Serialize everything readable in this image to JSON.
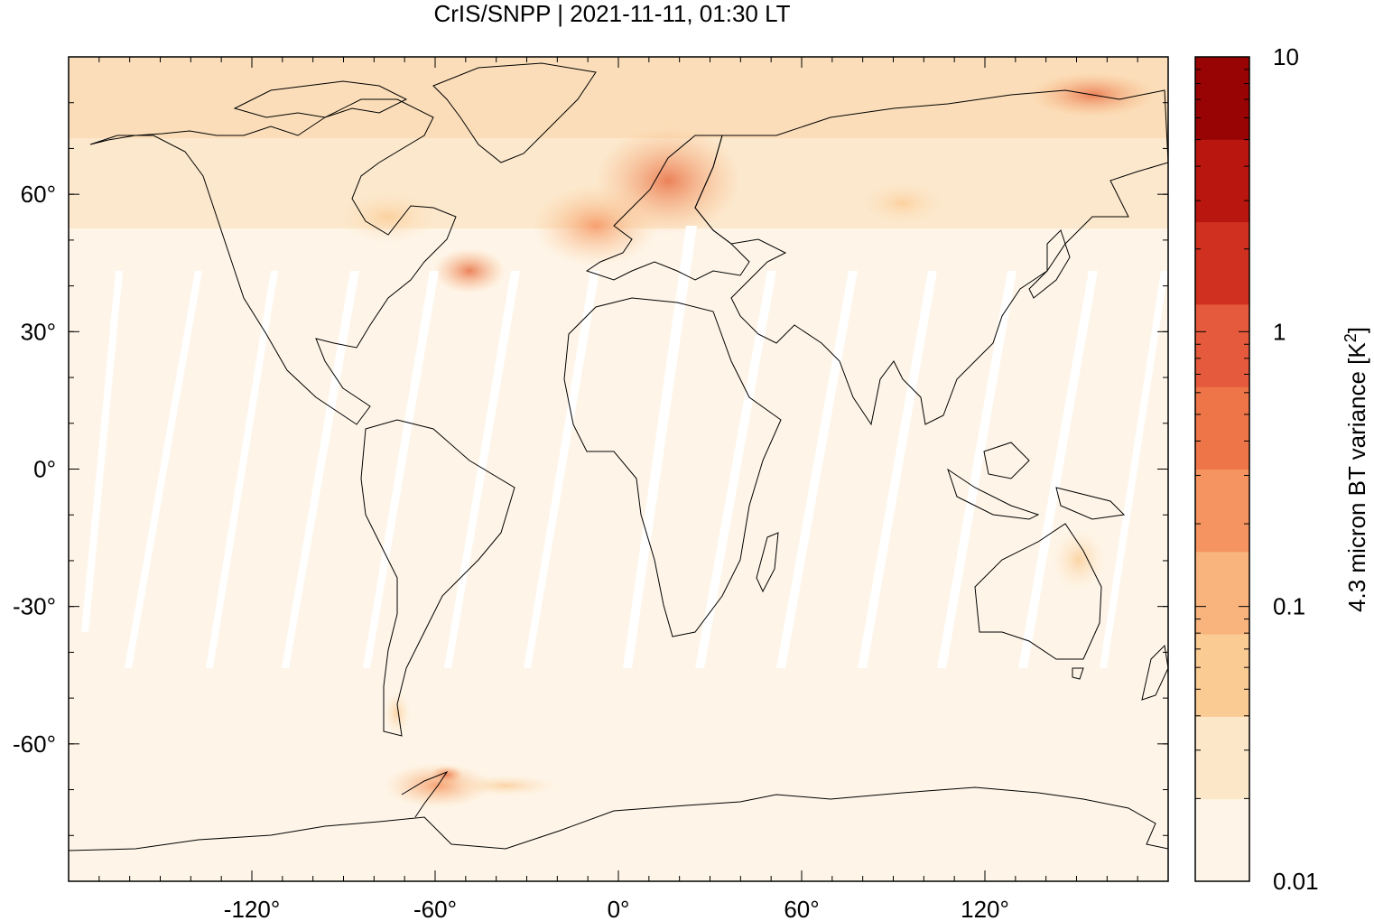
{
  "title": "CrIS/SNPP | 2021-11-11, 01:30 LT",
  "map": {
    "projection": "equirectangular",
    "lon_range": [
      -180,
      180
    ],
    "lat_range": [
      -90,
      90
    ],
    "x_ticks": [
      {
        "value": -120,
        "label": "-120°"
      },
      {
        "value": -60,
        "label": "-60°"
      },
      {
        "value": 0,
        "label": "0°"
      },
      {
        "value": 60,
        "label": "60°"
      },
      {
        "value": 120,
        "label": "120°"
      }
    ],
    "y_ticks": [
      {
        "value": 60,
        "label": "60°"
      },
      {
        "value": 30,
        "label": "30°"
      },
      {
        "value": 0,
        "label": "0°"
      },
      {
        "value": -30,
        "label": "-30°"
      },
      {
        "value": -60,
        "label": "-60°"
      }
    ],
    "background_color": "#fef5e8",
    "coastline_color": "#000000"
  },
  "colorbar": {
    "label_main": "4.3 micron BT variance [K",
    "label_sup": "2",
    "label_end": "]",
    "scale": "log",
    "range": [
      0.01,
      10
    ],
    "ticks": [
      {
        "value": 10,
        "label": "10"
      },
      {
        "value": 1,
        "label": "1"
      },
      {
        "value": 0.1,
        "label": "0.1"
      },
      {
        "value": 0.01,
        "label": "0.01"
      }
    ],
    "colors": [
      "#fef5e8",
      "#fce7c9",
      "#fbcb94",
      "#f9b47d",
      "#f59460",
      "#ee7548",
      "#e55a3c",
      "#cf3020",
      "#b8160f",
      "#980404"
    ]
  }
}
